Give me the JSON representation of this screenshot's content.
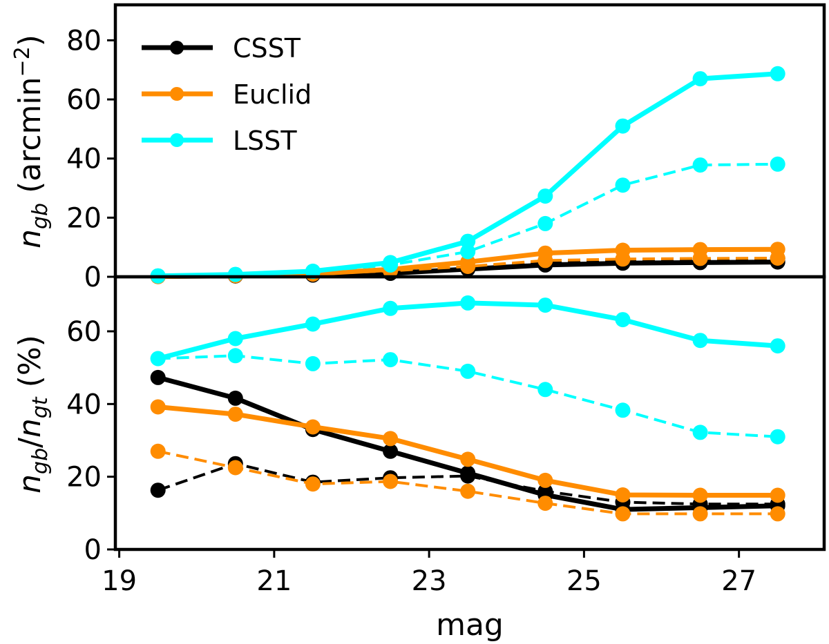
{
  "chart_data": [
    {
      "type": "line",
      "panel": "top",
      "ylabel_main": "n",
      "ylabel_sub": "gb",
      "ylabel_unit_text": "(arcmin",
      "ylabel_unit_exp": "−2",
      "ylabel_unit_close": ")",
      "ylim": [
        0,
        92
      ],
      "yticks": [
        0,
        20,
        40,
        60,
        80
      ],
      "x": [
        19.5,
        20.5,
        21.5,
        22.5,
        23.5,
        24.5,
        25.5,
        26.5,
        27.5
      ],
      "series": [
        {
          "name": "CSST",
          "style": "solid",
          "color": "#000000",
          "values": [
            0.1,
            0.3,
            0.6,
            1.2,
            2.6,
            4.0,
            4.6,
            4.8,
            5.0
          ]
        },
        {
          "name": "CSST",
          "style": "dashed",
          "color": "#000000",
          "values": [
            0.1,
            0.3,
            0.6,
            1.2,
            3.0,
            5.0,
            5.8,
            6.0,
            6.2
          ]
        },
        {
          "name": "Euclid",
          "style": "solid",
          "color": "#ff8c00",
          "values": [
            0.1,
            0.4,
            1.0,
            2.5,
            5.0,
            8.0,
            9.0,
            9.2,
            9.3
          ]
        },
        {
          "name": "Euclid",
          "style": "dashed",
          "color": "#ff8c00",
          "values": [
            0.1,
            0.4,
            0.9,
            2.0,
            3.5,
            5.5,
            6.0,
            6.2,
            6.3
          ]
        },
        {
          "name": "LSST",
          "style": "solid",
          "color": "#00ffff",
          "values": [
            0.3,
            0.8,
            1.9,
            4.8,
            12.0,
            27.3,
            51.0,
            67.0,
            68.7
          ]
        },
        {
          "name": "LSST",
          "style": "dashed",
          "color": "#00ffff",
          "values": [
            0.3,
            0.8,
            1.8,
            4.0,
            8.5,
            18.0,
            31.0,
            37.8,
            38.1
          ]
        }
      ],
      "legend": {
        "position": "top-left",
        "entries": [
          {
            "label": "CSST",
            "color": "#000000"
          },
          {
            "label": "Euclid",
            "color": "#ff8c00"
          },
          {
            "label": "LSST",
            "color": "#00ffff"
          }
        ]
      }
    },
    {
      "type": "line",
      "panel": "bottom",
      "ylabel_n1": "n",
      "ylabel_sub1": "gb",
      "ylabel_slash": "/",
      "ylabel_n2": "n",
      "ylabel_sub2": "gt",
      "ylabel_unit": "(%)",
      "xlabel": "mag",
      "ylim": [
        0,
        75
      ],
      "yticks": [
        0,
        20,
        40,
        60
      ],
      "xlim": [
        18.95,
        28.1
      ],
      "xticks": [
        19,
        21,
        23,
        25,
        27
      ],
      "x": [
        19.5,
        20.5,
        21.5,
        22.5,
        23.5,
        24.5,
        25.5,
        26.5,
        27.5
      ],
      "series": [
        {
          "name": "CSST",
          "style": "solid",
          "color": "#000000",
          "values": [
            47.3,
            41.6,
            33.0,
            27.0,
            21.0,
            15.0,
            11.0,
            11.5,
            12.0
          ]
        },
        {
          "name": "CSST",
          "style": "dashed",
          "color": "#000000",
          "values": [
            16.3,
            23.6,
            18.5,
            19.7,
            20.2,
            16.0,
            13.0,
            12.5,
            12.5
          ]
        },
        {
          "name": "Euclid",
          "style": "solid",
          "color": "#ff8c00",
          "values": [
            39.2,
            37.2,
            33.7,
            30.5,
            24.8,
            19.0,
            15.0,
            14.9,
            14.9
          ]
        },
        {
          "name": "Euclid",
          "style": "dashed",
          "color": "#ff8c00",
          "values": [
            27.0,
            22.5,
            18.0,
            18.7,
            16.0,
            12.7,
            9.8,
            9.8,
            9.8
          ]
        },
        {
          "name": "LSST",
          "style": "solid",
          "color": "#00ffff",
          "values": [
            52.5,
            58.0,
            62.0,
            66.3,
            67.8,
            67.2,
            63.2,
            57.5,
            56.0
          ]
        },
        {
          "name": "LSST",
          "style": "dashed",
          "color": "#00ffff",
          "values": [
            52.5,
            53.3,
            51.1,
            52.2,
            49.0,
            44.0,
            38.3,
            32.2,
            31.0
          ]
        }
      ]
    }
  ]
}
